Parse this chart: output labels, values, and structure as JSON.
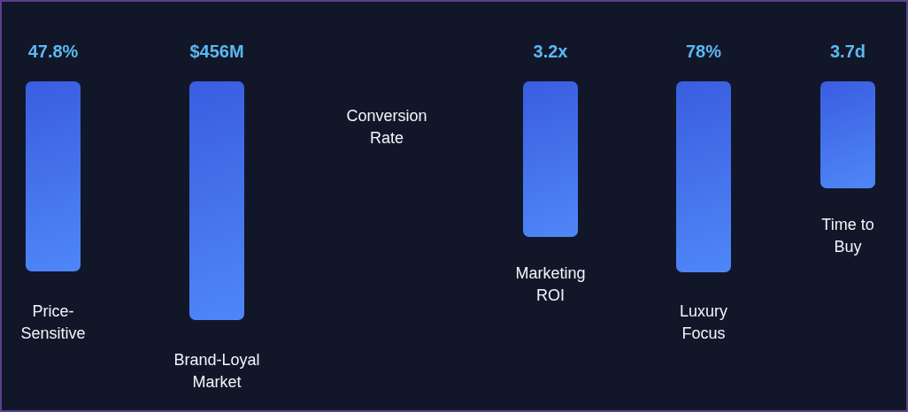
{
  "chart_data": {
    "type": "other",
    "categories": [
      "Price-Sensitive",
      "Brand-Loyal Market",
      "Conversion Rate",
      "Marketing ROI",
      "Luxury Focus",
      "Time to Buy"
    ],
    "values": [
      47.8,
      456,
      null,
      3.2,
      78,
      3.7
    ],
    "value_labels": [
      "47.8%",
      "$456M",
      null,
      "3.2x",
      "78%",
      "3.7d"
    ]
  }
}
